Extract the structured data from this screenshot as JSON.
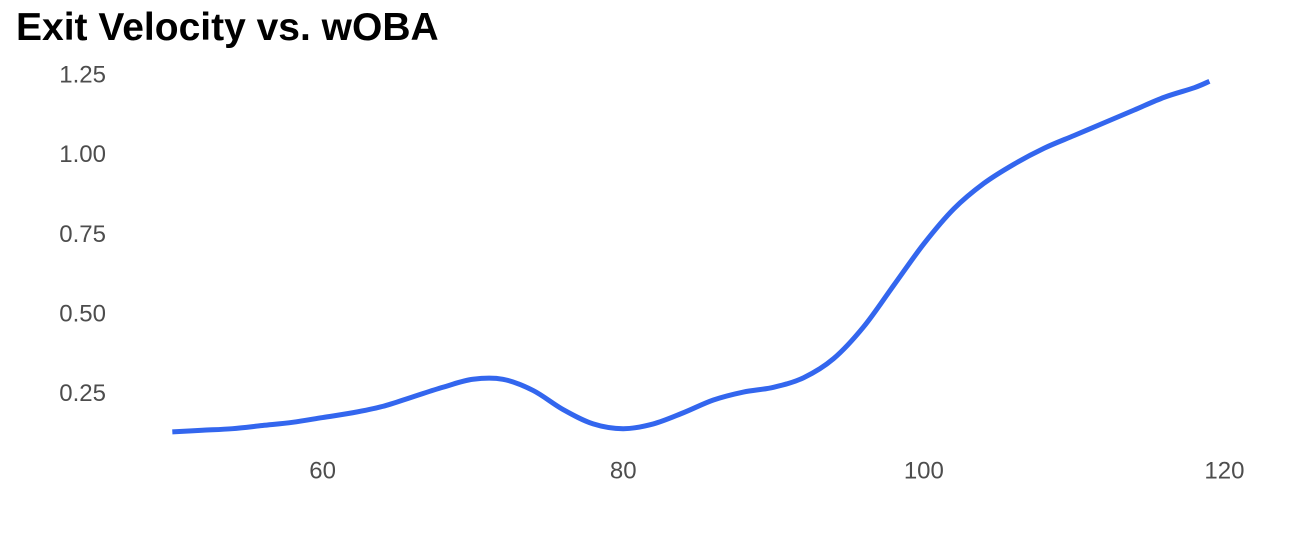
{
  "chart_data": {
    "type": "line",
    "title": "Exit Velocity vs. wOBA",
    "xlabel": "",
    "ylabel": "",
    "xlim": [
      40,
      121.5
    ],
    "ylim": [
      0.07,
      1.3
    ],
    "x_ticks": [
      60,
      80,
      100,
      120
    ],
    "x_tick_labels": [
      "60",
      "80",
      "100",
      "120"
    ],
    "y_ticks": [
      0.25,
      0.5,
      0.75,
      1.0,
      1.25
    ],
    "y_tick_labels": [
      "0.25",
      "0.50",
      "0.75",
      "1.00",
      "1.25"
    ],
    "grid": false,
    "legend": "none",
    "series": [
      {
        "color": "#3366ee",
        "x": [
          50,
          52,
          54,
          56,
          58,
          60,
          62,
          64,
          66,
          68,
          70,
          72,
          74,
          76,
          78,
          80,
          82,
          84,
          86,
          88,
          90,
          92,
          94,
          96,
          98,
          100,
          102,
          104,
          106,
          108,
          110,
          112,
          114,
          116,
          118,
          119
        ],
        "y": [
          0.13,
          0.135,
          0.14,
          0.15,
          0.16,
          0.175,
          0.19,
          0.21,
          0.24,
          0.27,
          0.295,
          0.295,
          0.26,
          0.2,
          0.155,
          0.14,
          0.155,
          0.19,
          0.23,
          0.255,
          0.27,
          0.3,
          0.36,
          0.46,
          0.59,
          0.72,
          0.83,
          0.91,
          0.97,
          1.02,
          1.06,
          1.1,
          1.14,
          1.18,
          1.21,
          1.23
        ]
      }
    ]
  }
}
